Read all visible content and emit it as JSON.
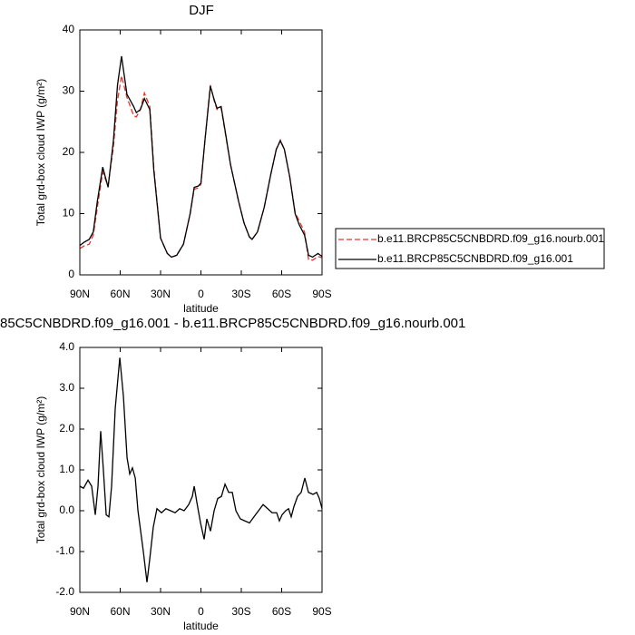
{
  "chart_data": [
    {
      "type": "line",
      "title": "DJF",
      "xlabel": "latitude",
      "ylabel": "Total grd-box cloud IWP (g/m²)",
      "x": [
        90,
        87,
        83,
        80,
        77,
        73,
        69,
        65,
        62,
        59,
        55,
        50,
        48,
        45,
        42,
        38,
        35,
        30,
        25,
        22,
        18,
        13,
        8,
        5,
        2,
        0,
        -3,
        -7,
        -10,
        -12,
        -15,
        -18,
        -22,
        -28,
        -32,
        -36,
        -38,
        -42,
        -47,
        -52,
        -56,
        -59,
        -62,
        -66,
        -70,
        -73,
        -77,
        -80,
        -83,
        -87,
        -90
      ],
      "series": [
        {
          "name": "b.e11.BRCP85C5CNBDRD.f09_g16.nourb.001",
          "color": "#e8342b",
          "dashed": true,
          "values": [
            4.3,
            4.7,
            5,
            6.5,
            11,
            16.8,
            14.5,
            21,
            28.5,
            32.5,
            29,
            26,
            25.8,
            27,
            29.7,
            27.5,
            17.5,
            6,
            3.5,
            2.9,
            3.2,
            5,
            10,
            14,
            14.2,
            14.8,
            22,
            31,
            28.3,
            27,
            27.3,
            23.3,
            18,
            12,
            8.5,
            6.2,
            5.8,
            7,
            11,
            16.5,
            20.5,
            22,
            20.5,
            16,
            10.2,
            8.8,
            7,
            2.5,
            2.4,
            3.0,
            2.8
          ]
        },
        {
          "name": "b.e11.BRCP85C5CNBDRD.f09_g16.001",
          "color": "#000000",
          "dashed": false,
          "values": [
            4.8,
            5.3,
            5.8,
            7,
            12,
            17.6,
            14.3,
            22,
            31,
            35.7,
            29.5,
            27.5,
            26.5,
            27,
            28.8,
            27,
            17,
            6,
            3.5,
            2.9,
            3.2,
            5,
            10,
            14.3,
            14.5,
            15,
            22,
            30.8,
            28.5,
            27.2,
            27.5,
            23.5,
            18,
            12,
            8.5,
            6.2,
            5.8,
            7,
            11,
            16.5,
            20.5,
            21.9,
            20.5,
            16,
            10,
            8.2,
            6.5,
            3.2,
            2.9,
            3.5,
            3.0
          ]
        }
      ],
      "xlim": [
        90,
        -90
      ],
      "xticks": [
        {
          "value": 90,
          "label": "90N"
        },
        {
          "value": 60,
          "label": "60N"
        },
        {
          "value": 30,
          "label": "30N"
        },
        0,
        {
          "value": -30,
          "label": "30S"
        },
        {
          "value": -60,
          "label": "60S"
        },
        {
          "value": -90,
          "label": "90S"
        }
      ],
      "ylim": [
        0,
        40
      ],
      "yticks": [
        0,
        10,
        20,
        30,
        40
      ]
    },
    {
      "type": "line",
      "title": "85C5CNBDRD.f09_g16.001 - b.e11.BRCP85C5CNBDRD.f09_g16.nourb.001",
      "xlabel": "latitude",
      "ylabel": "Total grd-box cloud IWP (g/m²)",
      "x": [
        90,
        87.3,
        83.9,
        81.2,
        78.5,
        76.5,
        74.5,
        72.5,
        70.4,
        68.4,
        66.4,
        63.7,
        60.3,
        57.6,
        54.9,
        52.9,
        50.9,
        48.8,
        46.8,
        44.8,
        42.8,
        40.1,
        38.1,
        35.4,
        32.7,
        29.3,
        26,
        22.6,
        19.2,
        15.8,
        12.5,
        9.1,
        6.4,
        5,
        3,
        0.3,
        -2.4,
        -4.4,
        -7.1,
        -9.8,
        -12.5,
        -15.2,
        -17.9,
        -20.6,
        -23.3,
        -26,
        -29.3,
        -32.7,
        -36.1,
        -39.4,
        -42.8,
        -46.2,
        -49.6,
        -52.9,
        -56.3,
        -58.3,
        -60.3,
        -63,
        -65.1,
        -67.1,
        -69.1,
        -71.8,
        -74.5,
        -77.2,
        -79.9,
        -83.3,
        -86,
        -88,
        -90
      ],
      "values": [
        0.6,
        0.55,
        0.75,
        0.6,
        -0.1,
        0.6,
        1.95,
        1.0,
        -0.1,
        -0.15,
        0.6,
        2.5,
        3.75,
        2.8,
        1.3,
        0.9,
        1.05,
        0.8,
        0.0,
        -0.5,
        -1.0,
        -1.75,
        -1.2,
        -0.4,
        0.05,
        -0.05,
        0.05,
        0.0,
        -0.05,
        0.05,
        0.0,
        0.15,
        0.35,
        0.6,
        0.2,
        -0.3,
        -0.7,
        -0.2,
        -0.5,
        0.0,
        0.3,
        0.35,
        0.65,
        0.45,
        0.45,
        0.0,
        -0.2,
        -0.25,
        -0.3,
        -0.15,
        0.0,
        0.15,
        0.05,
        -0.05,
        -0.05,
        -0.25,
        -0.1,
        0.0,
        0.05,
        -0.15,
        0.1,
        0.35,
        0.45,
        0.8,
        0.45,
        0.4,
        0.45,
        0.3,
        0.05
      ],
      "color": "#000000",
      "xlim": [
        90,
        -90
      ],
      "xticks": [
        {
          "value": 90,
          "label": "90N"
        },
        {
          "value": 60,
          "label": "60N"
        },
        {
          "value": 30,
          "label": "30N"
        },
        0,
        {
          "value": -30,
          "label": "30S"
        },
        {
          "value": -60,
          "label": "60S"
        },
        {
          "value": -90,
          "label": "90S"
        }
      ],
      "ylim": [
        -2,
        4
      ],
      "yticks": [
        {
          "value": -2,
          "label": "-2.0"
        },
        {
          "value": -1,
          "label": "-1.0"
        },
        {
          "value": 0,
          "label": "0.0"
        },
        {
          "value": 1,
          "label": "1.0"
        },
        {
          "value": 2,
          "label": "2.0"
        },
        {
          "value": 3,
          "label": "3.0"
        },
        {
          "value": 4,
          "label": "4.0"
        }
      ]
    }
  ]
}
